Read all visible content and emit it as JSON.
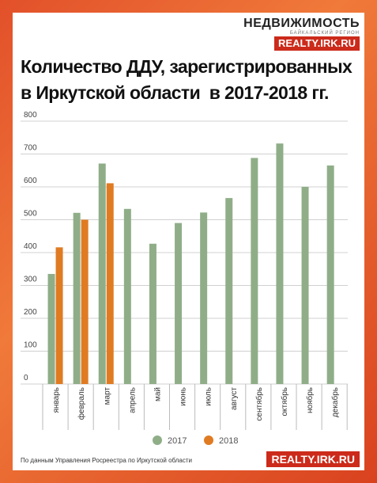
{
  "brand": {
    "name": "НЕДВИЖИМОСТЬ",
    "region": "БАЙКАЛЬСКИЙ РЕГИОН",
    "site": "REALTY.IRK.RU"
  },
  "title_line1": "Количество ДДУ, зарегистрированных",
  "title_line2": "в Иркутской области  в 2017-2018 гг.",
  "source": "По данным Управления Росреестра по Иркутской области",
  "footer_site": "REALTY.IRK.RU",
  "colors": {
    "s2017": "#8fae88",
    "s2018": "#e07b22",
    "grid": "#d0d0d0"
  },
  "chart_data": {
    "type": "bar",
    "categories": [
      "январь",
      "февраль",
      "март",
      "апрель",
      "май",
      "июнь",
      "июль",
      "август",
      "сентябрь",
      "октябрь",
      "ноябрь",
      "декабрь"
    ],
    "series": [
      {
        "name": "2017",
        "values": [
          335,
          521,
          671,
          533,
          427,
          490,
          522,
          566,
          688,
          732,
          600,
          665
        ]
      },
      {
        "name": "2018",
        "values": [
          416,
          500,
          611,
          null,
          null,
          null,
          null,
          null,
          null,
          null,
          null,
          null
        ]
      }
    ],
    "y_ticks": [
      "0",
      "100",
      "200",
      "300",
      "400",
      "500",
      "600",
      "700",
      "800"
    ],
    "ylim": [
      0,
      800
    ],
    "legend_position": "bottom"
  }
}
